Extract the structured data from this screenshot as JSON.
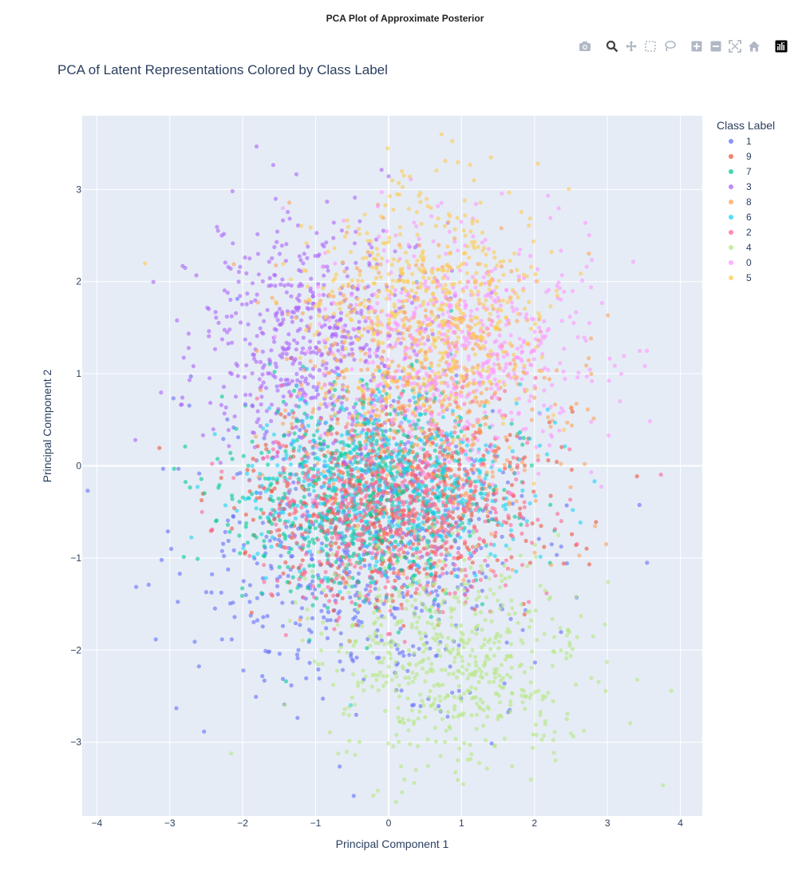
{
  "page": {
    "header": "PCA Plot of Approximate Posterior"
  },
  "toolbar": {
    "buttons": [
      {
        "name": "camera-icon",
        "active": false
      },
      {
        "name": "zoom-icon",
        "active": true
      },
      {
        "name": "pan-icon",
        "active": false
      },
      {
        "name": "box-select-icon",
        "active": false
      },
      {
        "name": "lasso-select-icon",
        "active": false
      },
      {
        "name": "zoom-in-icon",
        "active": false
      },
      {
        "name": "zoom-out-icon",
        "active": false
      },
      {
        "name": "autoscale-icon",
        "active": false
      },
      {
        "name": "reset-axes-icon",
        "active": false
      },
      {
        "name": "plotly-logo-icon",
        "active": false
      }
    ]
  },
  "chart_data": {
    "type": "scatter",
    "title": "PCA of Latent Representations Colored by Class Label",
    "xlabel": "Principal Component 1",
    "ylabel": "Principal Component 2",
    "xlim": [
      -4.2,
      4.3
    ],
    "ylim": [
      -3.8,
      3.8
    ],
    "xticks": [
      -4,
      -3,
      -2,
      -1,
      0,
      1,
      2,
      3,
      4
    ],
    "yticks": [
      -3,
      -2,
      -1,
      0,
      1,
      2,
      3
    ],
    "grid": true,
    "plot_background": "#e5ecf6",
    "marker_opacity": 0.6,
    "legend": {
      "title": "Class Label",
      "placement": "right"
    },
    "series": [
      {
        "name": "1",
        "color": "#636efa",
        "center": [
          -0.3,
          -1.0
        ],
        "spread": [
          1.15,
          0.8
        ]
      },
      {
        "name": "9",
        "color": "#ef553b",
        "center": [
          0.0,
          -0.4
        ],
        "spread": [
          1.0,
          0.5
        ]
      },
      {
        "name": "7",
        "color": "#00cc96",
        "center": [
          -0.4,
          -0.3
        ],
        "spread": [
          0.9,
          0.6
        ]
      },
      {
        "name": "3",
        "color": "#ab63fa",
        "center": [
          -1.0,
          1.4
        ],
        "spread": [
          0.8,
          0.65
        ]
      },
      {
        "name": "8",
        "color": "#ffa15a",
        "center": [
          0.5,
          0.6
        ],
        "spread": [
          0.9,
          0.8
        ]
      },
      {
        "name": "6",
        "color": "#19d3f3",
        "center": [
          0.0,
          -0.2
        ],
        "spread": [
          0.9,
          0.5
        ]
      },
      {
        "name": "2",
        "color": "#ff6692",
        "center": [
          0.1,
          -0.5
        ],
        "spread": [
          0.95,
          0.5
        ]
      },
      {
        "name": "4",
        "color": "#b6e880",
        "center": [
          0.9,
          -2.1
        ],
        "spread": [
          0.9,
          0.6
        ]
      },
      {
        "name": "0",
        "color": "#ff97ff",
        "center": [
          1.0,
          1.3
        ],
        "spread": [
          0.9,
          0.6
        ]
      },
      {
        "name": "5",
        "color": "#fecb52",
        "center": [
          0.5,
          1.7
        ],
        "spread": [
          0.8,
          0.65
        ]
      }
    ],
    "points_per_series": 600
  }
}
